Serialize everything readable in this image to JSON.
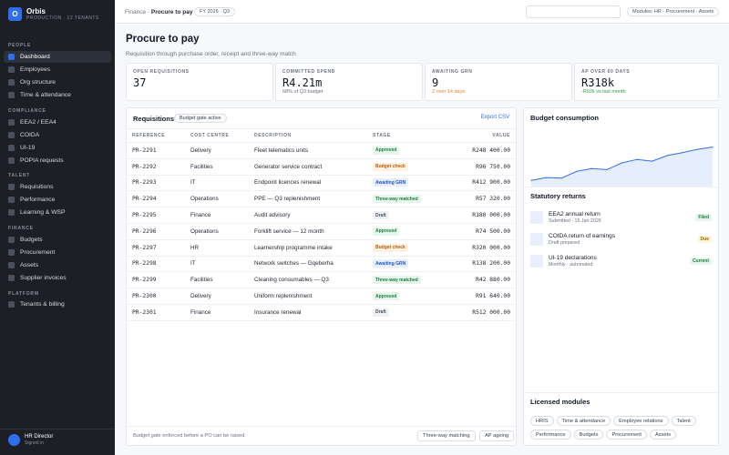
{
  "brand": {
    "logo_letter": "O",
    "name": "Orbis",
    "subtitle": "PRODUCTION · 12 TENANTS"
  },
  "sidebar": {
    "sections": [
      {
        "label": "PEOPLE",
        "items": [
          "Dashboard",
          "Employees",
          "Org structure",
          "Time & attendance"
        ]
      },
      {
        "label": "COMPLIANCE",
        "items": [
          "EEA2 / EEA4",
          "COIDA",
          "UI-19",
          "POPIA requests"
        ]
      },
      {
        "label": "TALENT",
        "items": [
          "Requisitions",
          "Performance",
          "Learning & WSP"
        ]
      },
      {
        "label": "FINANCE",
        "items": [
          "Budgets",
          "Procurement",
          "Assets",
          "Supplier invoices"
        ]
      },
      {
        "label": "PLATFORM",
        "items": [
          "Tenants & billing"
        ]
      }
    ],
    "active_item": "Dashboard",
    "user": {
      "name": "HR Director",
      "status": "Signed in"
    }
  },
  "topbar": {
    "breadcrumb_parent": "Finance",
    "breadcrumb_sep": "·",
    "breadcrumb_current": "Procure to pay",
    "period": "FY 2026 · Q3",
    "search_placeholder": "",
    "modules_pill": "Modules: HR · Procurement · Assets"
  },
  "page": {
    "title": "Procure to pay",
    "subtitle": "Requisition through purchase order, receipt and three-way match"
  },
  "kpis": [
    {
      "label": "OPEN REQUISITIONS",
      "value": "37",
      "note": ""
    },
    {
      "label": "COMMITTED SPEND",
      "value": "R4.21m",
      "note": "68% of Q3 budget"
    },
    {
      "label": "AWAITING GRN",
      "value": "9",
      "note": "2 over 14 days"
    },
    {
      "label": "AP OVER 60 DAYS",
      "value": "R318k",
      "note": "-R92k vs last month"
    }
  ],
  "requisitions": {
    "title": "Requisitions",
    "gate_tag": "Budget gate active",
    "export_label": "Export CSV",
    "columns": [
      "REFERENCE",
      "COST CENTRE",
      "DESCRIPTION",
      "STAGE",
      "VALUE"
    ],
    "rows": [
      [
        "PR-2291",
        "Delivery",
        "Fleet telematics units",
        "Approved",
        "R248 400.00"
      ],
      [
        "PR-2292",
        "Facilities",
        "Generator service contract",
        "Budget check",
        "R96 750.00"
      ],
      [
        "PR-2293",
        "IT",
        "Endpoint licences renewal",
        "Awaiting GRN",
        "R412 900.00"
      ],
      [
        "PR-2294",
        "Operations",
        "PPE — Q3 replenishment",
        "Three-way matched",
        "R57 320.00"
      ],
      [
        "PR-2295",
        "Finance",
        "Audit advisory",
        "Draft",
        "R180 000.00"
      ],
      [
        "PR-2296",
        "Operations",
        "Forklift service — 12 month",
        "Approved",
        "R74 500.00"
      ],
      [
        "PR-2297",
        "HR",
        "Learnership programme intake",
        "Budget check",
        "R320 000.00"
      ],
      [
        "PR-2298",
        "IT",
        "Network switches — Gqeberha",
        "Awaiting GRN",
        "R138 200.00"
      ],
      [
        "PR-2299",
        "Facilities",
        "Cleaning consumables — Q3",
        "Three-way matched",
        "R42 880.00"
      ],
      [
        "PR-2300",
        "Delivery",
        "Uniform replenishment",
        "Approved",
        "R91 640.00"
      ],
      [
        "PR-2301",
        "Finance",
        "Insurance renewal",
        "Draft",
        "R512 000.00"
      ]
    ],
    "footer_note": "Budget gate enforced before a PO can be raised",
    "footer_buttons": [
      "Three-way matching",
      "AP ageing"
    ]
  },
  "budget": {
    "title": "Budget consumption",
    "line_color": "#2f6fed"
  },
  "chart_data": {
    "type": "area",
    "title": "Budget consumption",
    "x": [
      1,
      2,
      3,
      4,
      5,
      6,
      7,
      8,
      9,
      10,
      11,
      12,
      13
    ],
    "values": [
      11,
      16,
      15,
      27,
      32,
      30,
      42,
      48,
      45,
      55,
      60,
      66,
      70
    ],
    "ylim": [
      0,
      100
    ],
    "grid": false
  },
  "returns": {
    "title": "Statutory returns",
    "items": [
      {
        "title": "EEA2 annual return",
        "sub": "Submitted · 15 Jan 2026",
        "badge": "Filed"
      },
      {
        "title": "COIDA return of earnings",
        "sub": "Draft prepared",
        "badge": "Due"
      },
      {
        "title": "UI-19 declarations",
        "sub": "Monthly · automated",
        "badge": "Current"
      }
    ]
  },
  "modules": {
    "title": "Licensed modules",
    "items": [
      "HRIS",
      "Time & attendance",
      "Employee relations",
      "Talent",
      "Performance",
      "Budgets",
      "Procurement",
      "Assets"
    ]
  }
}
